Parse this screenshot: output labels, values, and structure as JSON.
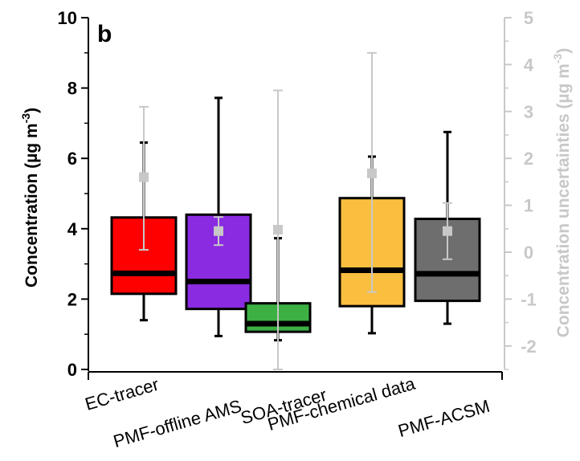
{
  "chart_data": {
    "type": "box",
    "panel_label": "b",
    "categories": [
      "EC-tracer",
      "PMF-offline AMS",
      "SOA-tracer",
      "PMF-chemical data",
      "PMF-ACSM"
    ],
    "colors": [
      "#ff0000",
      "#8a2be2",
      "#3cb043",
      "#fbbf3f",
      "#6e6e6e"
    ],
    "y_left": {
      "label_main": "Concentration (µg m",
      "label_sup": "-3",
      "label_close": ")",
      "ylim": [
        0,
        10
      ],
      "ticks": [
        "0",
        "2",
        "4",
        "6",
        "8",
        "10"
      ],
      "tick_values": [
        0,
        2,
        4,
        6,
        8,
        10
      ]
    },
    "y_right": {
      "label_main": "Concentration uncertainties (µg m",
      "label_sup": "-3",
      "label_close": ")",
      "ylim": [
        -2.5,
        5
      ],
      "ticks": [
        "-2",
        "-1",
        "0",
        "1",
        "2",
        "3",
        "4",
        "5"
      ],
      "tick_values": [
        -2,
        -1,
        0,
        1,
        2,
        3,
        4,
        5
      ],
      "color": "#c8c8c8"
    },
    "boxes": [
      {
        "category": "EC-tracer",
        "whisker_low": 1.4,
        "q1": 2.15,
        "median": 2.73,
        "q3": 4.32,
        "whisker_high": 6.45
      },
      {
        "category": "PMF-offline AMS",
        "whisker_low": 0.95,
        "q1": 1.72,
        "median": 2.5,
        "q3": 4.4,
        "whisker_high": 7.72
      },
      {
        "category": "SOA-tracer",
        "whisker_low": 0.83,
        "q1": 1.07,
        "median": 1.3,
        "q3": 1.88,
        "whisker_high": 3.73
      },
      {
        "category": "PMF-chemical data",
        "whisker_low": 1.03,
        "q1": 1.8,
        "median": 2.82,
        "q3": 4.87,
        "whisker_high": 6.05
      },
      {
        "category": "PMF-ACSM",
        "whisker_low": 1.3,
        "q1": 1.95,
        "median": 2.72,
        "q3": 4.28,
        "whisker_high": 6.75
      }
    ],
    "uncertainties": [
      {
        "category": "EC-tracer",
        "mean": 1.6,
        "low": 0.05,
        "high": 3.1
      },
      {
        "category": "PMF-offline AMS",
        "mean": 0.45,
        "low": 0.15,
        "high": 0.75
      },
      {
        "category": "SOA-tracer",
        "mean": 0.48,
        "low": -2.5,
        "high": 3.45
      },
      {
        "category": "PMF-chemical data",
        "mean": 1.68,
        "low": -0.85,
        "high": 4.25
      },
      {
        "category": "PMF-ACSM",
        "mean": 0.45,
        "low": -0.15,
        "high": 1.05
      }
    ]
  }
}
